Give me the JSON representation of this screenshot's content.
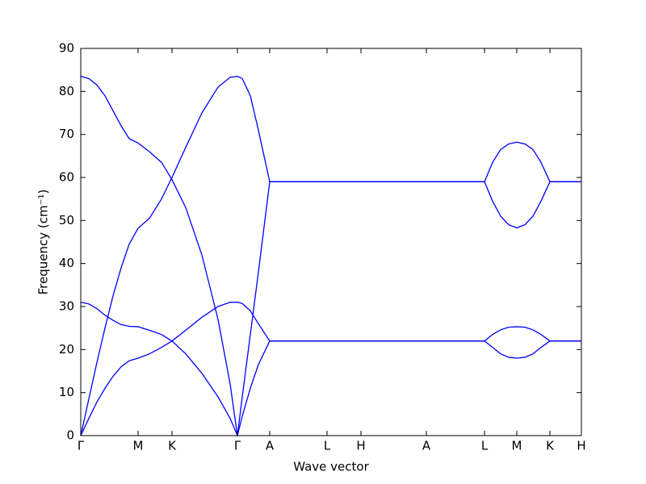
{
  "chart_data": {
    "type": "line",
    "xlabel": "Wave vector",
    "ylabel": "Frequency (cm⁻¹)",
    "x": [
      0,
      0.1,
      0.2,
      0.3,
      0.4,
      0.5,
      0.6,
      0.71,
      0.85,
      1.0,
      1.13,
      1.3,
      1.5,
      1.7,
      1.85,
      1.94,
      2.0,
      2.1,
      2.2,
      2.34,
      3.05,
      3.47,
      4.28,
      5.0,
      5.1,
      5.2,
      5.3,
      5.4,
      5.5,
      5.6,
      5.7,
      5.81,
      6.2
    ],
    "series": [
      {
        "color": "#0000ff",
        "values": [
          83.5,
          83.0,
          81.5,
          79,
          75.5,
          72,
          69,
          68,
          66,
          63.5,
          59.5,
          53,
          42,
          27,
          12,
          0,
          9,
          23.5,
          38,
          59,
          59,
          59,
          59,
          59,
          63.5,
          66.5,
          67.8,
          68.2,
          67.8,
          66.5,
          63.5,
          59,
          59
        ]
      },
      {
        "color": "#0000ff",
        "values": [
          0,
          8.5,
          17,
          25,
          32.5,
          39,
          44.5,
          48.2,
          50.5,
          55,
          60,
          67,
          75,
          81,
          83.3,
          83.5,
          83,
          79,
          71,
          59,
          59,
          59,
          59,
          59,
          54.5,
          51,
          49,
          48.3,
          49,
          51,
          54.5,
          59,
          59
        ]
      },
      {
        "color": "#0000ff",
        "values": [
          31,
          30.6,
          29.5,
          28,
          26.8,
          25.8,
          25.4,
          25.3,
          24.5,
          23.5,
          22,
          19,
          14.5,
          9,
          4,
          0,
          4.5,
          11,
          16.5,
          22,
          22,
          22,
          22,
          22,
          23.5,
          24.6,
          25.2,
          25.3,
          25.2,
          24.6,
          23.5,
          22,
          22
        ]
      },
      {
        "color": "#0000ff",
        "values": [
          0,
          4,
          7.8,
          11,
          13.8,
          16,
          17.4,
          18,
          19,
          20.5,
          22,
          24.5,
          27.5,
          30,
          31,
          31,
          30.7,
          29,
          26,
          22,
          22,
          22,
          22,
          22,
          20.5,
          19,
          18.2,
          18,
          18.2,
          19,
          20.5,
          22,
          22
        ]
      }
    ],
    "xlim": [
      0,
      6.2
    ],
    "ylim": [
      0,
      90
    ],
    "xticks": [
      {
        "value": 0,
        "label": "Γ"
      },
      {
        "value": 0.71,
        "label": "M"
      },
      {
        "value": 1.13,
        "label": "K"
      },
      {
        "value": 1.94,
        "label": "Γ"
      },
      {
        "value": 2.34,
        "label": "A"
      },
      {
        "value": 3.05,
        "label": "L"
      },
      {
        "value": 3.47,
        "label": "H"
      },
      {
        "value": 4.28,
        "label": "A"
      },
      {
        "value": 5.0,
        "label": "L"
      },
      {
        "value": 5.4,
        "label": "M"
      },
      {
        "value": 5.81,
        "label": "K"
      },
      {
        "value": 6.2,
        "label": "H"
      }
    ],
    "yticks": [
      0,
      10,
      20,
      30,
      40,
      50,
      60,
      70,
      80,
      90
    ]
  }
}
